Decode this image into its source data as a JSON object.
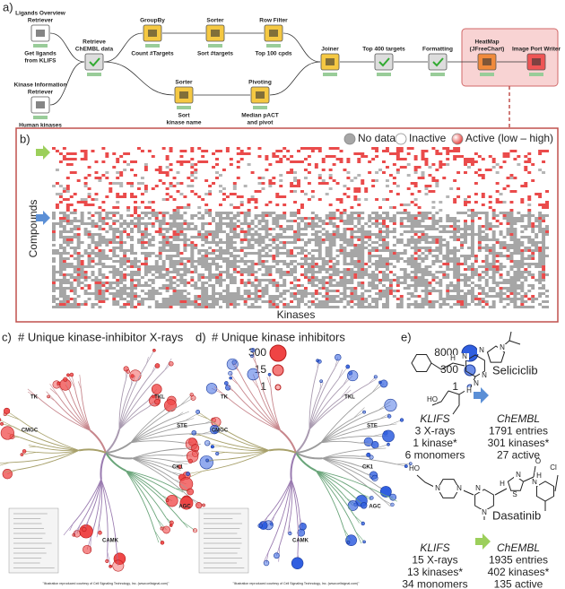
{
  "panel_a": {
    "label": "a)",
    "nodes": [
      {
        "title": [
          "Ligands Overview",
          "Retriever"
        ],
        "caption": [
          "Get ligands",
          "from KLIFS"
        ]
      },
      {
        "title": [
          "Kinase Information",
          "Retriever"
        ],
        "caption": [
          "Human kinases"
        ]
      },
      {
        "title": [
          "Retrieve",
          "ChEMBL data"
        ],
        "caption": []
      },
      {
        "title": [
          "GroupBy"
        ],
        "caption": [
          "Count #Targets"
        ]
      },
      {
        "title": [
          "Sorter"
        ],
        "caption": [
          "Sort #targets"
        ]
      },
      {
        "title": [
          "Row Filter"
        ],
        "caption": [
          "Top 100 cpds"
        ]
      },
      {
        "title": [
          "Sorter"
        ],
        "caption": [
          "Sort",
          "kinase name"
        ]
      },
      {
        "title": [
          "Pivoting"
        ],
        "caption": [
          "Median pACT",
          "and pivot"
        ]
      },
      {
        "title": [
          "Joiner"
        ],
        "caption": []
      },
      {
        "title": [
          "Top 400 targets"
        ],
        "caption": []
      },
      {
        "title": [
          "Formatting"
        ],
        "caption": []
      },
      {
        "title": [
          "HeatMap",
          "(JFreeChart)"
        ],
        "caption": []
      },
      {
        "title": [
          "Image Port Writer"
        ],
        "caption": []
      }
    ]
  },
  "panel_b": {
    "label": "b)",
    "legend": [
      "No data",
      "Inactive",
      "Active (low – high)"
    ],
    "y_label": "Compounds",
    "x_label": "Kinases"
  },
  "panel_c": {
    "label": "c)",
    "title": "# Unique kinase-inhibitor X-rays",
    "legend": [
      300,
      15,
      1
    ],
    "groups": [
      "TK",
      "TKL",
      "STE",
      "CK1",
      "AGC",
      "CAMK",
      "CMGC"
    ],
    "credit": "\"Illustration reproduced courtesy of Cell Signaling Technology, Inc. (www.cellsignal.com)\""
  },
  "panel_d": {
    "label": "d)",
    "title": "# Unique kinase inhibitors",
    "legend": [
      8000,
      300,
      1
    ],
    "groups": [
      "TK",
      "TKL",
      "STE",
      "CK1",
      "AGC",
      "CAMK",
      "CMGC"
    ],
    "credit": "\"Illustration reproduced courtesy of Cell Signaling Technology, Inc. (www.cellsignal.com)\""
  },
  "panel_e": {
    "label": "e)",
    "compounds": [
      {
        "name": "Seliciclib",
        "atoms": [
          "N",
          "N",
          "N",
          "N",
          "H",
          "N",
          "H",
          "HO"
        ],
        "klifs": [
          "KLIFS",
          "3 X-rays",
          "1 kinase*",
          "6 monomers"
        ],
        "chembl": [
          "ChEMBL",
          "1791 entries",
          "301 kinases*",
          "27 active"
        ]
      },
      {
        "name": "Dasatinib",
        "atoms": [
          "HO",
          "N",
          "N",
          "N",
          "N",
          "H",
          "N",
          "S",
          "N",
          "H",
          "O",
          "Cl"
        ],
        "klifs": [
          "KLIFS",
          "15 X-rays",
          "13 kinases*",
          "34 monomers"
        ],
        "chembl": [
          "ChEMBL",
          "1935 entries",
          "402 kinases*",
          "135 active"
        ]
      }
    ]
  }
}
